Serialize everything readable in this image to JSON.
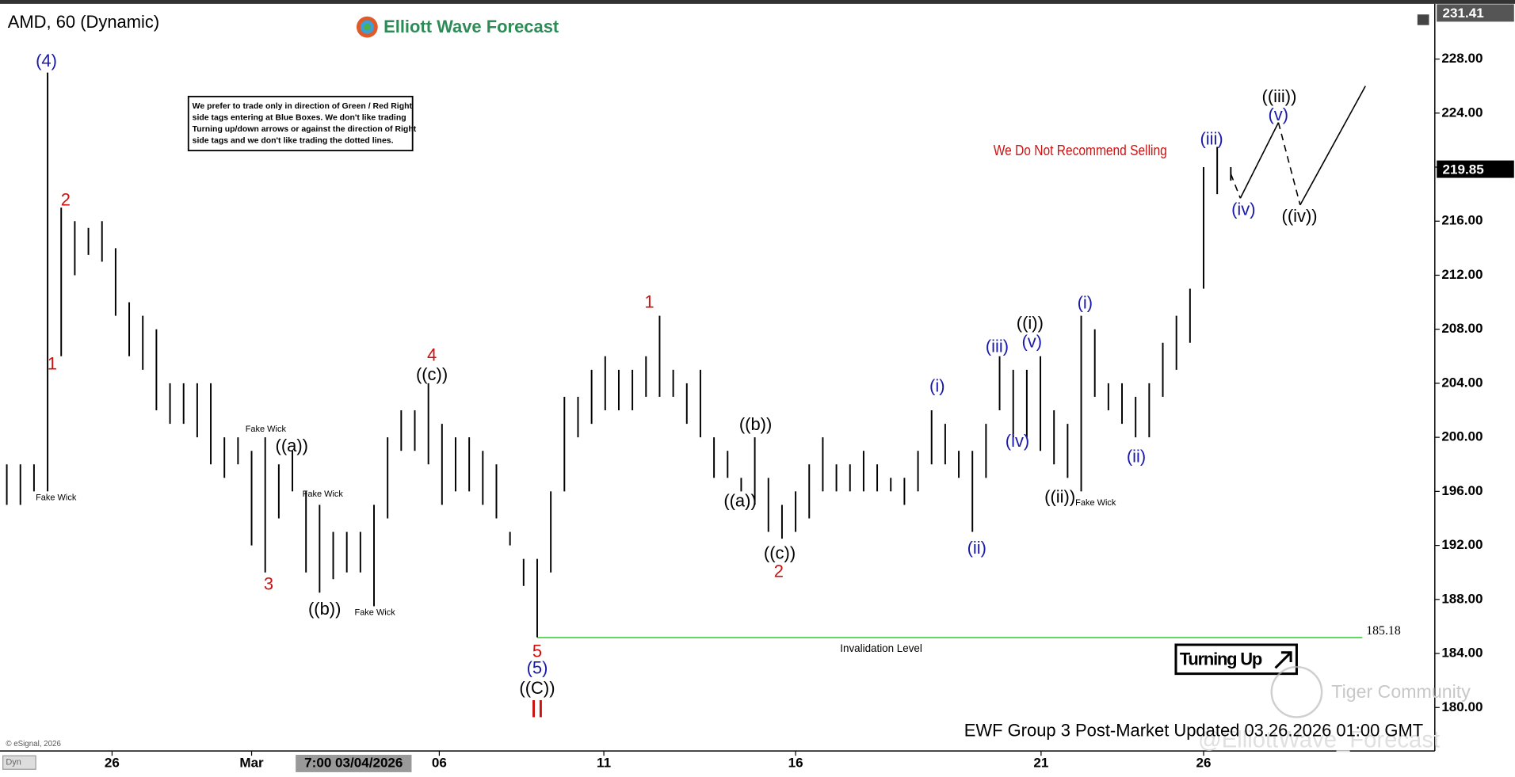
{
  "header": {
    "title": "AMD, 60 (Dynamic)",
    "logo": "Elliott Wave Forecast"
  },
  "note": [
    "We prefer to trade only in direction of Green / Red Right",
    "side tags entering at Blue Boxes. We don't like trading",
    "Turning up/down arrows or against the direction of Right",
    "side tags and we don't like trading the dotted lines."
  ],
  "chart_data": {
    "type": "hl-bar",
    "color": "#000000",
    "high": [
      198,
      198,
      198,
      227,
      217,
      216,
      215.5,
      216,
      214,
      210,
      209,
      208,
      204,
      204,
      204,
      204,
      200,
      200,
      199,
      200,
      198,
      199,
      196,
      195,
      193,
      193,
      193,
      195,
      200,
      202,
      202,
      204,
      201,
      200,
      200,
      199,
      198,
      193,
      191,
      191,
      196,
      203,
      203,
      205,
      206,
      205,
      205,
      206,
      209,
      205,
      204,
      205,
      200,
      199,
      197,
      200,
      197,
      195,
      196,
      198,
      200,
      198,
      198,
      199,
      198,
      197,
      197,
      199,
      202,
      201,
      199,
      199,
      201,
      206,
      205,
      205,
      206,
      202,
      201,
      209,
      208,
      204,
      204,
      203,
      204,
      207,
      209,
      211,
      220,
      221.5,
      220
    ],
    "low": [
      195,
      195,
      196,
      196,
      206,
      212,
      213.5,
      213,
      209,
      206,
      205,
      202,
      201,
      201,
      200,
      198,
      197,
      198,
      192,
      190,
      194,
      196,
      190,
      188.5,
      189.5,
      190,
      190,
      187.5,
      194,
      199,
      199,
      198,
      195,
      196,
      196,
      195,
      194,
      192,
      189,
      185.2,
      190,
      196,
      200,
      201,
      202,
      202,
      202,
      203,
      203,
      203,
      201,
      200,
      197,
      197,
      196,
      195,
      193,
      192.5,
      193,
      194,
      196,
      196,
      196,
      196,
      196,
      196,
      195,
      196,
      198,
      198,
      197,
      193,
      197,
      202,
      200,
      200,
      199,
      198,
      197,
      196,
      203,
      202,
      201,
      200,
      200,
      203,
      205,
      207,
      211,
      218,
      219
    ],
    "xlim": [
      -0.5,
      105
    ],
    "xticks": [
      {
        "value": 7.74,
        "label": "26"
      },
      {
        "value": 18,
        "label": "Mar"
      },
      {
        "value": 31.8,
        "label": "06"
      },
      {
        "value": 43.9,
        "label": "11"
      },
      {
        "value": 58,
        "label": "16"
      },
      {
        "value": 76.05,
        "label": "21"
      },
      {
        "value": 88,
        "label": "26"
      }
    ],
    "ylim": [
      177,
      231.8
    ],
    "yticks": [
      {
        "value": 180,
        "label": "180.00"
      },
      {
        "value": 184,
        "label": "184.00"
      },
      {
        "value": 188,
        "label": "188.00"
      },
      {
        "value": 192,
        "label": "192.00"
      },
      {
        "value": 196,
        "label": "196.00"
      },
      {
        "value": 200,
        "label": "200.00"
      },
      {
        "value": 204,
        "label": "204.00"
      },
      {
        "value": 208,
        "label": "208.00"
      },
      {
        "value": 212,
        "label": "212.00"
      },
      {
        "value": 216,
        "label": "216.00"
      },
      {
        "value": 220,
        "label": "220.00"
      },
      {
        "value": 224,
        "label": "224.00"
      },
      {
        "value": 228,
        "label": "228.00"
      }
    ],
    "price_tags": [
      {
        "value": 231.41,
        "label": "231.41"
      },
      {
        "value": 219.85,
        "label": "219.85"
      }
    ],
    "invalidation": {
      "value": 185.18,
      "label": "185.18",
      "text": "Invalidation Level",
      "color": "#5ed35e"
    },
    "projection": {
      "x": [
        90,
        90.7,
        93.5,
        95.1,
        99.9
      ],
      "y": [
        219.5,
        217.7,
        223.3,
        217.2,
        226
      ]
    },
    "cursor_label": "7:00 03/04/2026",
    "annotations": [
      {
        "text": "(4)",
        "color": "#1a1aa8"
      },
      {
        "text": "2",
        "color": "#cc1111"
      },
      {
        "text": "1",
        "color": "#cc1111"
      },
      {
        "text": "Fake Wick",
        "color": "#000000"
      },
      {
        "text": "Fake Wick",
        "color": "#000000"
      },
      {
        "text": "((a))",
        "color": "#000000"
      },
      {
        "text": "Fake Wick",
        "color": "#000000"
      },
      {
        "text": "3",
        "color": "#cc1111"
      },
      {
        "text": "((b))",
        "color": "#000000"
      },
      {
        "text": "Fake Wick",
        "color": "#000000"
      },
      {
        "text": "4",
        "color": "#cc1111"
      },
      {
        "text": "((c))",
        "color": "#000000"
      },
      {
        "text": "5",
        "color": "#cc1111"
      },
      {
        "text": "(5)",
        "color": "#1a1aa8"
      },
      {
        "text": "((C))",
        "color": "#000000"
      },
      {
        "text": "II",
        "color": "#cc1111"
      },
      {
        "text": "1",
        "color": "#cc1111"
      },
      {
        "text": "((b))",
        "color": "#000000"
      },
      {
        "text": "((a))",
        "color": "#000000"
      },
      {
        "text": "((c))",
        "color": "#000000"
      },
      {
        "text": "2",
        "color": "#cc1111"
      },
      {
        "text": "(i)",
        "color": "#1a1aa8"
      },
      {
        "text": "(ii)",
        "color": "#1a1aa8"
      },
      {
        "text": "(iii)",
        "color": "#1a1aa8"
      },
      {
        "text": "(iv)",
        "color": "#1a1aa8"
      },
      {
        "text": "(v)",
        "color": "#1a1aa8"
      },
      {
        "text": "((i))",
        "color": "#000000"
      },
      {
        "text": "((ii))",
        "color": "#000000"
      },
      {
        "text": "Fake Wick",
        "color": "#000000"
      },
      {
        "text": "(i)",
        "color": "#1a1aa8"
      },
      {
        "text": "(ii)",
        "color": "#1a1aa8"
      },
      {
        "text": "(iii)",
        "color": "#1a1aa8"
      },
      {
        "text": "(iv)",
        "color": "#1a1aa8"
      },
      {
        "text": "(v)",
        "color": "#1a1aa8"
      },
      {
        "text": "((iii))",
        "color": "#000000"
      },
      {
        "text": "((iv))",
        "color": "#000000"
      },
      {
        "text": "We Do Not Recommend Selling",
        "color": "#cc1111"
      }
    ]
  },
  "badge": "Turning Up",
  "footer": "EWF Group 3 Post-Market Updated 03.26.2026 01:00 GMT",
  "copyright": "© eSignal, 2026",
  "dyn": "Dyn",
  "watermark": [
    "Tiger Community",
    "@ElliottWave_Forecast"
  ]
}
